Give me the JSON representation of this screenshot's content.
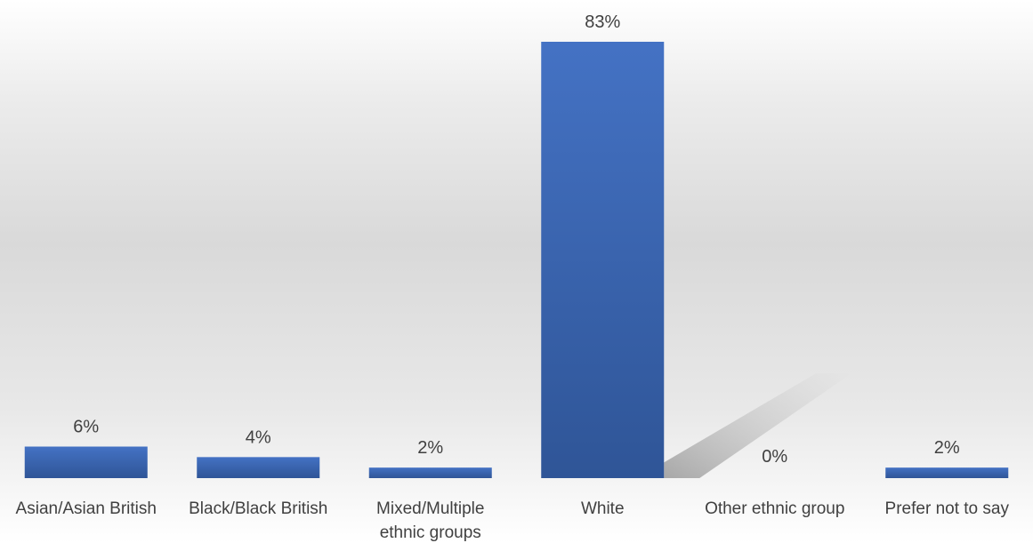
{
  "chart_data": {
    "type": "bar",
    "categories": [
      "Asian/Asian British",
      "Black/Black British",
      "Mixed/Multiple ethnic groups",
      "White",
      "Other ethnic group",
      "Prefer not to say"
    ],
    "category_lines": [
      [
        "Asian/Asian British"
      ],
      [
        "Black/Black British"
      ],
      [
        "Mixed/Multiple",
        "ethnic groups"
      ],
      [
        "White"
      ],
      [
        "Other ethnic group"
      ],
      [
        "Prefer not to say"
      ]
    ],
    "values": [
      6,
      4,
      2,
      83,
      0,
      2
    ],
    "data_labels": [
      "6%",
      "4%",
      "2%",
      "83%",
      "0%",
      "2%"
    ],
    "unit": "%",
    "title": "",
    "xlabel": "",
    "ylabel": "",
    "ylim": [
      0,
      83
    ],
    "grid": false,
    "legend": "none",
    "bar_color_top": "#4472c4",
    "bar_color_bottom": "#2f5597",
    "label_color": "#404040"
  }
}
